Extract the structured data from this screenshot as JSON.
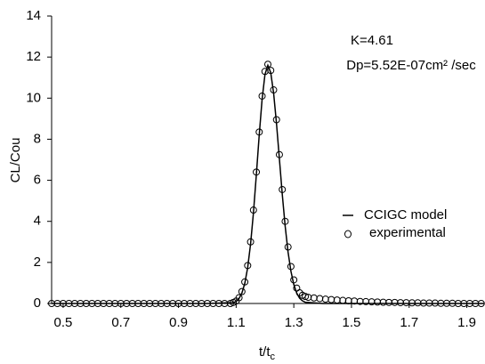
{
  "chart_data": {
    "type": "line_scatter",
    "x_label": {
      "text": "t/t",
      "subscript": "c"
    },
    "y_label": "CL/Cou",
    "annotations": [
      "K=4.61",
      "Dp=5.52E-07cm² /sec"
    ],
    "xlim": [
      0.46,
      1.96
    ],
    "ylim": [
      0,
      14
    ],
    "xticks": [
      0.5,
      0.7,
      0.9,
      1.1,
      1.3,
      1.5,
      1.7,
      1.9
    ],
    "yticks": [
      0,
      2,
      4,
      6,
      8,
      10,
      12,
      14
    ],
    "legend": "right",
    "series": [
      {
        "name": "CCIGC model",
        "kind": "line",
        "color": "#000000",
        "x": [
          0.46,
          0.8,
          1.0,
          1.09,
          1.1,
          1.11,
          1.12,
          1.13,
          1.14,
          1.15,
          1.16,
          1.17,
          1.18,
          1.19,
          1.2,
          1.21,
          1.22,
          1.23,
          1.24,
          1.25,
          1.26,
          1.27,
          1.28,
          1.29,
          1.3,
          1.31,
          1.32,
          1.33,
          1.34,
          1.4,
          1.6,
          1.96
        ],
        "values": [
          0,
          0,
          0,
          0.04,
          0.1,
          0.24,
          0.51,
          0.98,
          1.75,
          2.89,
          4.42,
          6.26,
          8.2,
          9.94,
          11.16,
          11.6,
          11.24,
          10.24,
          8.76,
          7.04,
          5.31,
          3.77,
          2.51,
          1.57,
          0.92,
          0.51,
          0.26,
          0.13,
          0.06,
          0,
          0,
          0
        ]
      },
      {
        "name": "experimental",
        "kind": "scatter",
        "color": "#000000",
        "x": [
          0.46,
          0.48,
          0.5,
          0.52,
          0.54,
          0.56,
          0.58,
          0.6,
          0.62,
          0.64,
          0.66,
          0.68,
          0.7,
          0.72,
          0.74,
          0.76,
          0.78,
          0.8,
          0.82,
          0.84,
          0.86,
          0.88,
          0.9,
          0.92,
          0.94,
          0.96,
          0.98,
          1.0,
          1.02,
          1.04,
          1.06,
          1.08,
          1.09,
          1.1,
          1.11,
          1.12,
          1.13,
          1.14,
          1.15,
          1.16,
          1.17,
          1.18,
          1.19,
          1.2,
          1.21,
          1.22,
          1.23,
          1.24,
          1.25,
          1.26,
          1.27,
          1.28,
          1.29,
          1.3,
          1.31,
          1.32,
          1.33,
          1.34,
          1.35,
          1.37,
          1.39,
          1.41,
          1.43,
          1.45,
          1.47,
          1.49,
          1.51,
          1.53,
          1.55,
          1.57,
          1.59,
          1.61,
          1.63,
          1.65,
          1.67,
          1.69,
          1.71,
          1.73,
          1.75,
          1.77,
          1.79,
          1.81,
          1.83,
          1.85,
          1.87,
          1.89,
          1.91,
          1.93,
          1.95
        ],
        "values": [
          0,
          0,
          0,
          0,
          0,
          0,
          0,
          0,
          0,
          0,
          0,
          0,
          0,
          0,
          0,
          0,
          0,
          0,
          0,
          0,
          0,
          0,
          0,
          0,
          0,
          0,
          0,
          0,
          0,
          0,
          0,
          0,
          0.05,
          0.12,
          0.28,
          0.58,
          1.05,
          1.85,
          3.0,
          4.55,
          6.4,
          8.35,
          10.1,
          11.3,
          11.65,
          11.35,
          10.4,
          8.95,
          7.25,
          5.55,
          4.0,
          2.75,
          1.8,
          1.15,
          0.75,
          0.52,
          0.4,
          0.34,
          0.3,
          0.27,
          0.24,
          0.21,
          0.19,
          0.17,
          0.15,
          0.13,
          0.12,
          0.1,
          0.09,
          0.08,
          0.07,
          0.06,
          0.05,
          0.05,
          0.04,
          0.04,
          0.03,
          0.03,
          0.02,
          0.02,
          0.02,
          0.01,
          0.01,
          0.01,
          0,
          0,
          0,
          0,
          0
        ]
      }
    ]
  }
}
